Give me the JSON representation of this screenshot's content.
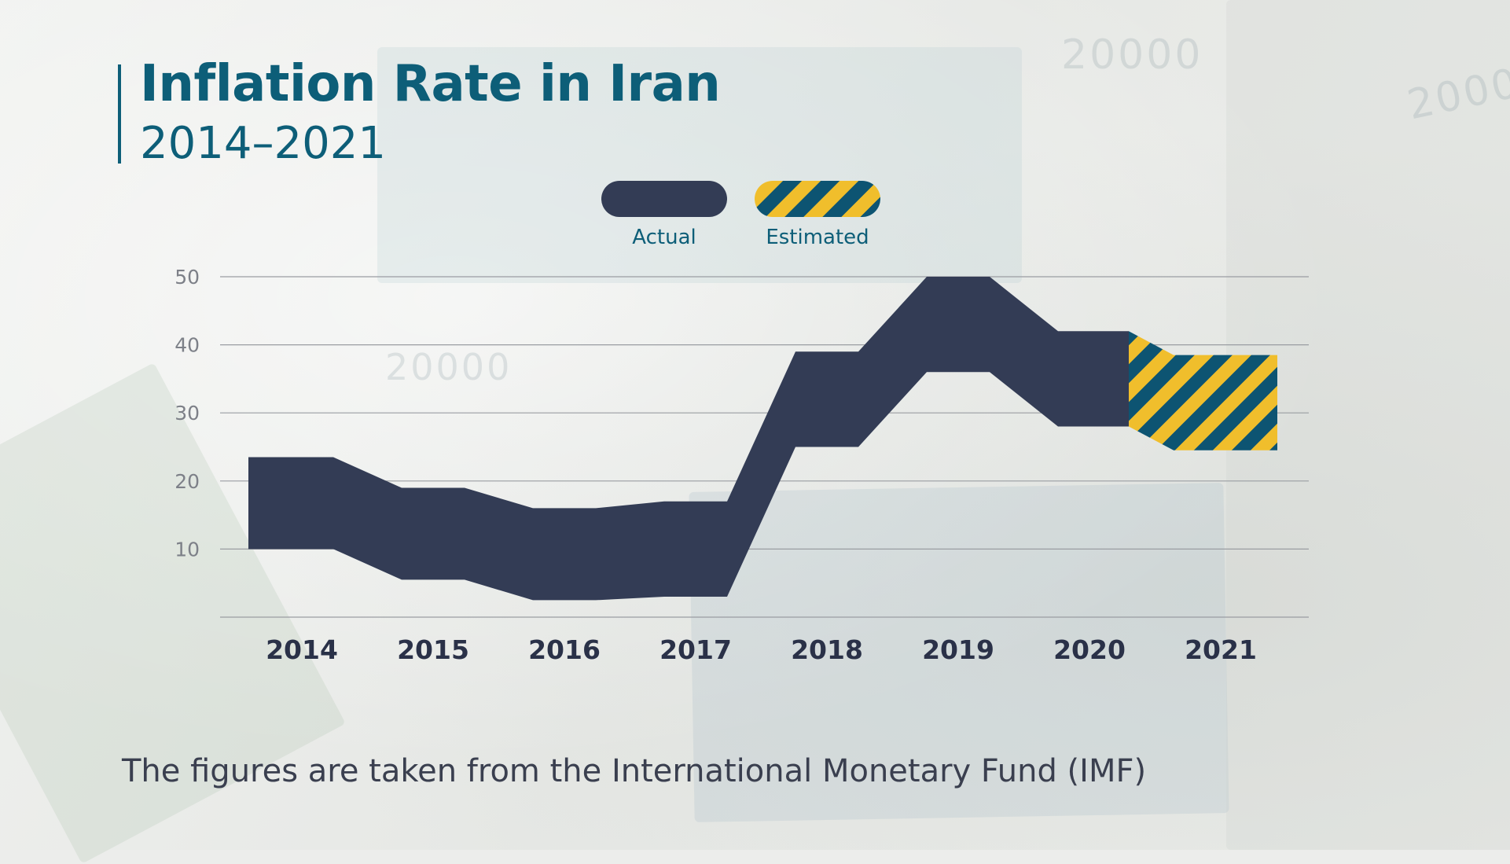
{
  "header": {
    "title": "Inflation Rate in Iran",
    "subtitle": "2014–2021"
  },
  "footer": {
    "note": "The figures are taken from the International Monetary Fund (IMF)"
  },
  "colors": {
    "actual": "#333c55",
    "stripe_a": "#0d5472",
    "stripe_b": "#f0be2c",
    "title": "#0d5e78",
    "grid": "#9a9da2",
    "axis_label": "#2a3148"
  },
  "chart_data": {
    "type": "area",
    "x": [
      "2014",
      "2015",
      "2016",
      "2017",
      "2018",
      "2019",
      "2020",
      "2021"
    ],
    "series": [
      {
        "name": "Actual",
        "status": "actual",
        "values": [
          {
            "year": "2014",
            "low": 10,
            "high": 23.5
          },
          {
            "year": "2015",
            "low": 5.5,
            "high": 19
          },
          {
            "year": "2016",
            "low": 2.5,
            "high": 16
          },
          {
            "year": "2017",
            "low": 3,
            "high": 17
          },
          {
            "year": "2018",
            "low": 25,
            "high": 39
          },
          {
            "year": "2019",
            "low": 36,
            "high": 50
          },
          {
            "year": "2020",
            "low": 28,
            "high": 42
          }
        ]
      },
      {
        "name": "Estimated",
        "status": "estimated",
        "values": [
          {
            "year": "2020",
            "low": 28,
            "high": 42
          },
          {
            "year": "2021",
            "low": 24.5,
            "high": 38.5
          }
        ]
      }
    ],
    "yticks": [
      10,
      20,
      30,
      40,
      50
    ],
    "ylim": [
      0,
      50
    ],
    "grid": true,
    "legend": {
      "position": "top-center",
      "items": [
        {
          "label": "Actual",
          "style": "solid"
        },
        {
          "label": "Estimated",
          "style": "striped"
        }
      ]
    }
  }
}
